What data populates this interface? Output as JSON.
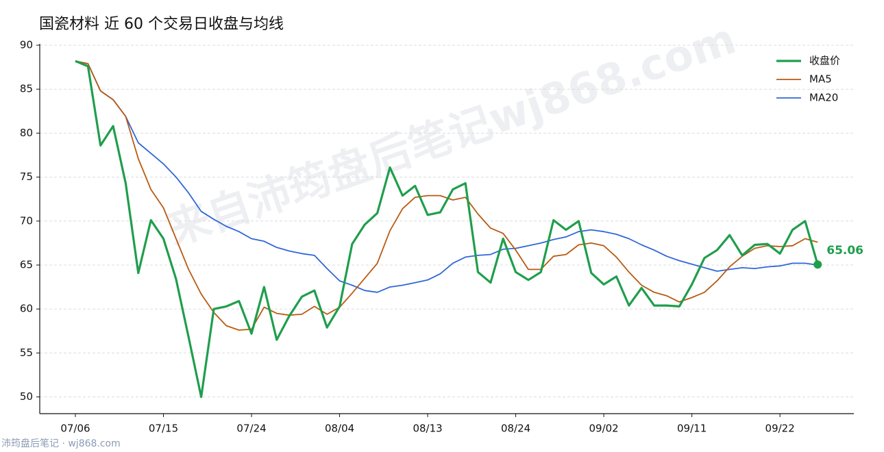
{
  "chart_data": {
    "type": "line",
    "title": "国瓷材料 近 60 个交易日收盘与均线",
    "watermark": "来自沛筠盘后笔记wj868.com",
    "footer": "沛筠盘后笔记 · wj868.com",
    "categories": [
      "07/06",
      null,
      null,
      null,
      null,
      null,
      null,
      "07/15",
      null,
      null,
      null,
      null,
      null,
      null,
      "07/24",
      null,
      null,
      null,
      null,
      null,
      null,
      "08/04",
      null,
      null,
      null,
      null,
      null,
      null,
      "08/13",
      null,
      null,
      null,
      null,
      null,
      null,
      "08/24",
      null,
      null,
      null,
      null,
      null,
      null,
      "09/02",
      null,
      null,
      null,
      null,
      null,
      null,
      "09/11",
      null,
      null,
      null,
      null,
      null,
      null,
      "09/22",
      null,
      null,
      null
    ],
    "series": [
      {
        "name": "收盘价",
        "color": "#1f9e4c",
        "width": 3.2,
        "end_marker": true,
        "values": [
          88.2,
          87.6,
          78.6,
          80.8,
          74.3,
          64.1,
          70.1,
          68.0,
          63.4,
          56.8,
          50.0,
          60.0,
          60.3,
          60.9,
          57.2,
          62.5,
          56.5,
          59.2,
          61.4,
          62.1,
          57.9,
          60.3,
          67.4,
          69.6,
          70.9,
          76.1,
          72.9,
          74.0,
          70.7,
          71.0,
          73.6,
          74.3,
          64.2,
          63.0,
          68.0,
          64.2,
          63.3,
          64.2,
          70.1,
          69.0,
          70.0,
          64.1,
          62.8,
          63.7,
          60.4,
          62.4,
          60.4,
          60.4,
          60.3,
          62.8,
          65.8,
          66.7,
          68.4,
          66.1,
          67.3,
          67.4,
          66.3,
          69.0,
          70.0,
          65.06
        ]
      },
      {
        "name": "MA5",
        "color": "#b85a12",
        "width": 1.8,
        "values": [
          88.2,
          87.9,
          84.8,
          83.8,
          81.9,
          77.1,
          73.6,
          71.5,
          68.0,
          64.5,
          61.7,
          59.6,
          58.1,
          57.6,
          57.7,
          60.2,
          59.5,
          59.3,
          59.4,
          60.3,
          59.4,
          60.2,
          61.8,
          63.5,
          65.2,
          68.9,
          71.4,
          72.7,
          72.9,
          72.9,
          72.4,
          72.7,
          70.8,
          69.2,
          68.6,
          66.7,
          64.5,
          64.5,
          66.0,
          66.2,
          67.3,
          67.5,
          67.2,
          65.9,
          64.2,
          62.7,
          61.9,
          61.5,
          60.8,
          61.3,
          61.9,
          63.2,
          64.8,
          66.0,
          66.9,
          67.2,
          67.1,
          67.2,
          68.0,
          67.6
        ]
      },
      {
        "name": "MA20",
        "color": "#2f66d9",
        "width": 1.8,
        "values": [
          88.2,
          87.9,
          84.8,
          83.8,
          81.9,
          78.9,
          77.7,
          76.5,
          75.0,
          73.2,
          71.1,
          70.2,
          69.4,
          68.8,
          68.0,
          67.7,
          67.0,
          66.6,
          66.3,
          66.1,
          64.6,
          63.2,
          62.7,
          62.1,
          61.9,
          62.5,
          62.7,
          63.0,
          63.3,
          64.0,
          65.2,
          65.9,
          66.1,
          66.2,
          66.8,
          66.9,
          67.2,
          67.5,
          67.9,
          68.2,
          68.8,
          69.0,
          68.8,
          68.5,
          68.0,
          67.3,
          66.7,
          66.0,
          65.5,
          65.1,
          64.7,
          64.3,
          64.5,
          64.7,
          64.6,
          64.8,
          64.9,
          65.2,
          65.2,
          65.0
        ]
      }
    ],
    "ylim": [
      48.1,
      90
    ],
    "yticks": [
      50,
      55,
      60,
      65,
      70,
      75,
      80,
      85,
      90
    ],
    "grid": true,
    "legend": "upper right"
  }
}
